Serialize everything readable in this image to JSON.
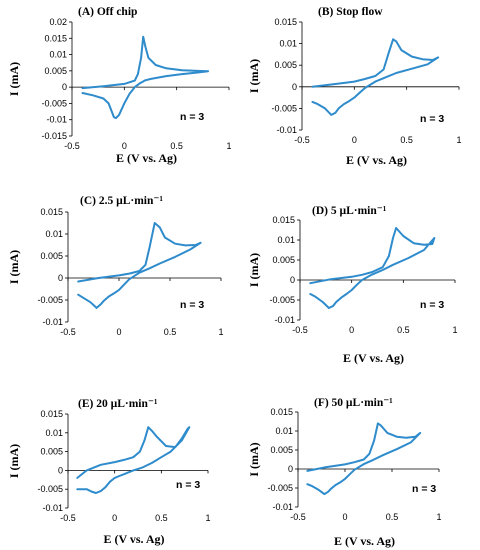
{
  "chart_data": [
    {
      "type": "line",
      "panel": "A",
      "title": "(A) Off chip",
      "xlabel": "E (V vs. Ag)",
      "ylabel": "I (mA)",
      "annotation": "n = 3",
      "xlim": [
        -0.5,
        1
      ],
      "ylim": [
        -0.015,
        0.02
      ],
      "xticks": [
        -0.5,
        0,
        0.5,
        1
      ],
      "xtick_labels": [
        "-0.5",
        "0",
        "0.5",
        "1"
      ],
      "yticks": [
        -0.015,
        -0.01,
        -0.005,
        0,
        0.005,
        0.01,
        0.015,
        0.02
      ],
      "ytick_labels": [
        "-0.015",
        "-0.01",
        "-0.005",
        "0",
        "0.005",
        "0.01",
        "0.015",
        "0.02"
      ],
      "grid": false,
      "color": "#2e8bcc",
      "series": [
        {
          "x": [
            -0.4,
            -0.2,
            0,
            0.1,
            0.13,
            0.16,
            0.18,
            0.2,
            0.23,
            0.3,
            0.4,
            0.55,
            0.7,
            0.8,
            0.7,
            0.55,
            0.4,
            0.3,
            0.25,
            0.2,
            0.15,
            0.1,
            0.05,
            0,
            -0.05,
            -0.08,
            -0.1,
            -0.12,
            -0.15,
            -0.2,
            -0.3,
            -0.4
          ],
          "y": [
            -0.0003,
            0.0003,
            0.001,
            0.002,
            0.004,
            0.009,
            0.0155,
            0.0125,
            0.009,
            0.0068,
            0.0058,
            0.0052,
            0.005,
            0.0049,
            0.0045,
            0.004,
            0.0034,
            0.0028,
            0.0025,
            0.0021,
            0.0012,
            0.0,
            -0.002,
            -0.005,
            -0.0085,
            -0.0095,
            -0.0092,
            -0.0075,
            -0.005,
            -0.0035,
            -0.0025,
            -0.0018
          ]
        }
      ]
    },
    {
      "type": "line",
      "panel": "B",
      "title": "(B) Stop flow",
      "xlabel": "E (V vs. Ag)",
      "ylabel": "I (mA)",
      "annotation": "n = 3",
      "xlim": [
        -0.5,
        1
      ],
      "ylim": [
        -0.01,
        0.015
      ],
      "xticks": [
        -0.5,
        0,
        0.5,
        1
      ],
      "xtick_labels": [
        "-0.5",
        "0",
        "0.5",
        "1"
      ],
      "yticks": [
        -0.01,
        -0.005,
        0,
        0.005,
        0.01,
        0.015
      ],
      "ytick_labels": [
        "-0.01",
        "-0.005",
        "0",
        "0.005",
        "0.01",
        "0.015"
      ],
      "grid": false,
      "color": "#2e8bcc",
      "series": [
        {
          "x": [
            -0.4,
            -0.2,
            0,
            0.1,
            0.2,
            0.28,
            0.33,
            0.37,
            0.4,
            0.45,
            0.55,
            0.65,
            0.75,
            0.8,
            0.7,
            0.55,
            0.4,
            0.3,
            0.2,
            0.1,
            0.05,
            0,
            -0.05,
            -0.1,
            -0.15,
            -0.18,
            -0.22,
            -0.28,
            -0.35,
            -0.4
          ],
          "y": [
            0.0,
            0.0006,
            0.0012,
            0.0018,
            0.0025,
            0.004,
            0.008,
            0.011,
            0.0105,
            0.0085,
            0.007,
            0.0064,
            0.0062,
            0.0068,
            0.0052,
            0.0042,
            0.0032,
            0.0022,
            0.0012,
            -0.0003,
            -0.0014,
            -0.0025,
            -0.0033,
            -0.004,
            -0.005,
            -0.006,
            -0.0065,
            -0.005,
            -0.004,
            -0.0035
          ]
        }
      ]
    },
    {
      "type": "line",
      "panel": "C",
      "title": "(C) 2.5 µL·min⁻¹",
      "xlabel": "",
      "ylabel": "I (mA)",
      "annotation": "n = 3",
      "xlim": [
        -0.5,
        1
      ],
      "ylim": [
        -0.01,
        0.015
      ],
      "xticks": [
        -0.5,
        0,
        0.5,
        1
      ],
      "xtick_labels": [
        "-0.5",
        "0",
        "0.5",
        "1"
      ],
      "yticks": [
        -0.01,
        -0.005,
        0,
        0.005,
        0.01,
        0.015
      ],
      "ytick_labels": [
        "-0.01",
        "-0.005",
        "0",
        "0.005",
        "0.01",
        "0.015"
      ],
      "grid": false,
      "color": "#2e8bcc",
      "series": [
        {
          "x": [
            -0.4,
            -0.2,
            0,
            0.1,
            0.2,
            0.26,
            0.3,
            0.35,
            0.4,
            0.45,
            0.55,
            0.65,
            0.75,
            0.8,
            0.7,
            0.55,
            0.4,
            0.3,
            0.2,
            0.1,
            0.05,
            0,
            -0.05,
            -0.1,
            -0.15,
            -0.18,
            -0.22,
            -0.28,
            -0.35,
            -0.4
          ],
          "y": [
            -0.0008,
            0.0,
            0.0006,
            0.001,
            0.0016,
            0.003,
            0.007,
            0.0125,
            0.0115,
            0.0092,
            0.0078,
            0.0074,
            0.0075,
            0.008,
            0.0065,
            0.0048,
            0.0033,
            0.0022,
            0.0012,
            -0.0003,
            -0.0015,
            -0.0027,
            -0.0035,
            -0.0042,
            -0.0052,
            -0.006,
            -0.0068,
            -0.0055,
            -0.0045,
            -0.0038
          ]
        }
      ]
    },
    {
      "type": "line",
      "panel": "D",
      "title": "(D) 5 µL·min⁻¹",
      "xlabel": "E (V vs. Ag)",
      "ylabel": "I (mA)",
      "annotation": "n = 3",
      "xlim": [
        -0.5,
        1
      ],
      "ylim": [
        -0.01,
        0.015
      ],
      "xticks": [
        -0.5,
        0,
        0.5,
        1
      ],
      "xtick_labels": [
        "-0.5",
        "0",
        "0.5",
        "1"
      ],
      "yticks": [
        -0.01,
        -0.005,
        0,
        0.005,
        0.01,
        0.015
      ],
      "ytick_labels": [
        "-0.01",
        "-0.005",
        "0",
        "0.005",
        "0.01",
        "0.015"
      ],
      "grid": false,
      "color": "#2e8bcc",
      "series": [
        {
          "x": [
            -0.4,
            -0.2,
            0,
            0.1,
            0.2,
            0.3,
            0.36,
            0.4,
            0.43,
            0.5,
            0.6,
            0.7,
            0.78,
            0.8,
            0.7,
            0.55,
            0.4,
            0.3,
            0.2,
            0.1,
            0.05,
            0,
            -0.05,
            -0.1,
            -0.15,
            -0.18,
            -0.22,
            -0.28,
            -0.35,
            -0.4
          ],
          "y": [
            -0.0008,
            0.0002,
            0.0008,
            0.0013,
            0.002,
            0.0032,
            0.006,
            0.0105,
            0.013,
            0.011,
            0.0092,
            0.0088,
            0.009,
            0.0105,
            0.0075,
            0.0055,
            0.0038,
            0.0025,
            0.0014,
            0.0,
            -0.0012,
            -0.0025,
            -0.0035,
            -0.0044,
            -0.0055,
            -0.0065,
            -0.007,
            -0.0055,
            -0.0042,
            -0.0035
          ]
        }
      ]
    },
    {
      "type": "line",
      "panel": "E",
      "title": "(E) 20 µL·min⁻¹",
      "xlabel": "E (V vs. Ag)",
      "ylabel": "I (mA)",
      "annotation": "n = 3",
      "xlim": [
        -0.5,
        1
      ],
      "ylim": [
        -0.01,
        0.015
      ],
      "xticks": [
        -0.5,
        0,
        0.5,
        1
      ],
      "xtick_labels": [
        "-0.5",
        "0",
        "0.5",
        "1"
      ],
      "yticks": [
        -0.01,
        -0.005,
        0,
        0.005,
        0.01,
        0.015
      ],
      "ytick_labels": [
        "-0.01",
        "-0.005",
        "0",
        "0.005",
        "0.01",
        "0.015"
      ],
      "grid": false,
      "color": "#2e8bcc",
      "series": [
        {
          "x": [
            -0.4,
            -0.3,
            -0.15,
            0,
            0.1,
            0.2,
            0.27,
            0.32,
            0.36,
            0.4,
            0.45,
            0.55,
            0.65,
            0.72,
            0.78,
            0.8,
            0.72,
            0.6,
            0.5,
            0.4,
            0.3,
            0.2,
            0.1,
            0.05,
            0,
            -0.05,
            -0.1,
            -0.15,
            -0.2,
            -0.25,
            -0.3,
            -0.4
          ],
          "y": [
            -0.002,
            0.0,
            0.0015,
            0.0022,
            0.0028,
            0.0035,
            0.005,
            0.008,
            0.0115,
            0.0105,
            0.009,
            0.0065,
            0.0062,
            0.0085,
            0.011,
            0.0115,
            0.008,
            0.005,
            0.0035,
            0.002,
            0.0008,
            0.0,
            -0.001,
            -0.0015,
            -0.002,
            -0.003,
            -0.0045,
            -0.0055,
            -0.006,
            -0.0056,
            -0.005,
            -0.005
          ]
        }
      ]
    },
    {
      "type": "line",
      "panel": "F",
      "title": "(F)  50 µL·min⁻¹",
      "xlabel": "E (V vs. Ag)",
      "ylabel": "I (mA)",
      "annotation": "n = 3",
      "xlim": [
        -0.5,
        1
      ],
      "ylim": [
        -0.01,
        0.015
      ],
      "xticks": [
        -0.5,
        0,
        0.5,
        1
      ],
      "xtick_labels": [
        "-0.5",
        "0",
        "0.5",
        "1"
      ],
      "yticks": [
        -0.01,
        -0.005,
        0,
        0.005,
        0.01,
        0.015
      ],
      "ytick_labels": [
        "-0.01",
        "-0.005",
        "0",
        "0.005",
        "0.01",
        "0.015"
      ],
      "grid": false,
      "color": "#2e8bcc",
      "series": [
        {
          "x": [
            -0.4,
            -0.2,
            0,
            0.1,
            0.2,
            0.26,
            0.31,
            0.35,
            0.38,
            0.45,
            0.55,
            0.65,
            0.75,
            0.8,
            0.7,
            0.55,
            0.4,
            0.3,
            0.2,
            0.1,
            0.05,
            0,
            -0.05,
            -0.1,
            -0.15,
            -0.18,
            -0.22,
            -0.28,
            -0.35,
            -0.4
          ],
          "y": [
            -0.0005,
            0.0005,
            0.0012,
            0.0018,
            0.0025,
            0.004,
            0.0075,
            0.012,
            0.0115,
            0.0095,
            0.0085,
            0.0082,
            0.0085,
            0.0095,
            0.007,
            0.0052,
            0.0036,
            0.0024,
            0.0013,
            -0.0002,
            -0.0014,
            -0.0026,
            -0.0035,
            -0.0042,
            -0.0052,
            -0.006,
            -0.0066,
            -0.0055,
            -0.0045,
            -0.004
          ]
        }
      ]
    }
  ]
}
